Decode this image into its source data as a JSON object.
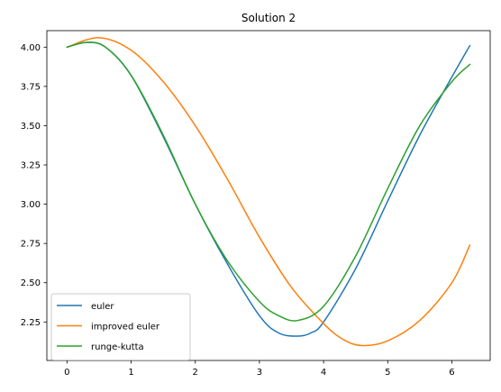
{
  "chart_data": {
    "type": "line",
    "title": "Solution 2",
    "xlabel": "",
    "ylabel": "",
    "xlim": [
      -0.314,
      6.597
    ],
    "ylim": [
      2.005,
      4.105
    ],
    "xticks": [
      0,
      1,
      2,
      3,
      4,
      5,
      6
    ],
    "yticks": [
      2.25,
      2.5,
      2.75,
      3.0,
      3.25,
      3.5,
      3.75,
      4.0
    ],
    "ytick_labels": [
      "2.25",
      "2.50",
      "2.75",
      "3.00",
      "3.25",
      "3.50",
      "3.75",
      "4.00"
    ],
    "grid": false,
    "legend_position": "lower-left",
    "series": [
      {
        "name": "euler",
        "color": "#1f77b4",
        "x": [
          0,
          0.3,
          0.6,
          1.0,
          1.5,
          2.0,
          2.5,
          3.0,
          3.3,
          3.6,
          3.8,
          4.0,
          4.5,
          5.0,
          5.5,
          6.0,
          6.28
        ],
        "y": [
          4.0,
          4.03,
          4.0,
          3.82,
          3.43,
          3.0,
          2.62,
          2.29,
          2.18,
          2.16,
          2.18,
          2.25,
          2.59,
          3.02,
          3.44,
          3.81,
          4.01
        ]
      },
      {
        "name": "improved euler",
        "color": "#ff7f0e",
        "x": [
          0,
          0.5,
          1.0,
          1.5,
          2.0,
          2.5,
          3.0,
          3.5,
          4.0,
          4.3,
          4.6,
          5.0,
          5.5,
          6.0,
          6.28
        ],
        "y": [
          4.0,
          4.06,
          3.98,
          3.78,
          3.5,
          3.16,
          2.79,
          2.47,
          2.24,
          2.14,
          2.1,
          2.13,
          2.26,
          2.5,
          2.74
        ]
      },
      {
        "name": "runge-kutta",
        "color": "#2ca02c",
        "x": [
          0,
          0.3,
          0.6,
          1.0,
          1.5,
          2.0,
          2.5,
          3.0,
          3.3,
          3.6,
          4.0,
          4.5,
          5.0,
          5.5,
          6.0,
          6.28
        ],
        "y": [
          4.0,
          4.03,
          4.0,
          3.82,
          3.44,
          3.0,
          2.64,
          2.38,
          2.29,
          2.26,
          2.35,
          2.67,
          3.1,
          3.5,
          3.78,
          3.89
        ]
      }
    ]
  }
}
